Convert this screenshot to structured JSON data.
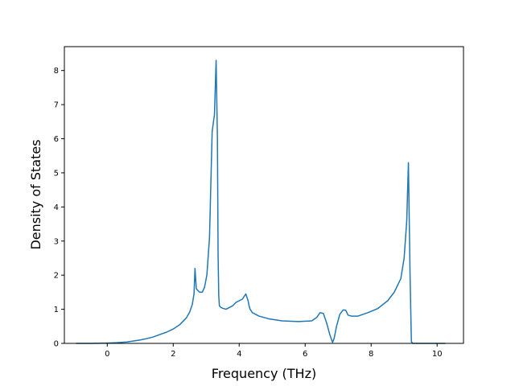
{
  "chart_data": {
    "type": "line",
    "title": "",
    "xlabel": "Frequency (THz)",
    "ylabel": "Density of States",
    "xlim": [
      -1.3,
      10.8
    ],
    "ylim": [
      0,
      8.7
    ],
    "xticks": [
      0,
      2,
      4,
      6,
      8,
      10
    ],
    "yticks": [
      0,
      1,
      2,
      3,
      4,
      5,
      6,
      7,
      8
    ],
    "grid": false,
    "legend": "none",
    "line_color": "#1f77b4",
    "series": [
      {
        "x": [
          -0.95,
          -0.5,
          0.0,
          0.3,
          0.6,
          0.8,
          1.0,
          1.2,
          1.4,
          1.6,
          1.8,
          2.0,
          2.2,
          2.4,
          2.5,
          2.58,
          2.63,
          2.66,
          2.7,
          2.8,
          2.88,
          2.95,
          3.02,
          3.1,
          3.18,
          3.22,
          3.25,
          3.3,
          3.34,
          3.36,
          3.38,
          3.4,
          3.45,
          3.5,
          3.6,
          3.7,
          3.8,
          3.9,
          4.0,
          4.1,
          4.2,
          4.27,
          4.3,
          4.33,
          4.4,
          4.6,
          4.9,
          5.3,
          5.8,
          6.2,
          6.35,
          6.45,
          6.55,
          6.65,
          6.75,
          6.83,
          6.88,
          6.95,
          7.05,
          7.15,
          7.23,
          7.3,
          7.4,
          7.6,
          7.9,
          8.2,
          8.5,
          8.7,
          8.9,
          9.0,
          9.08,
          9.13,
          9.18,
          9.22,
          9.26,
          9.3,
          9.35,
          9.5,
          10.0,
          10.25
        ],
        "y": [
          0,
          0,
          0.01,
          0.02,
          0.04,
          0.07,
          0.1,
          0.14,
          0.19,
          0.26,
          0.33,
          0.42,
          0.55,
          0.75,
          0.92,
          1.15,
          1.45,
          2.2,
          1.6,
          1.5,
          1.5,
          1.65,
          2.0,
          3.1,
          6.2,
          6.5,
          6.7,
          8.3,
          6.0,
          2.6,
          1.4,
          1.1,
          1.05,
          1.03,
          1.0,
          1.05,
          1.1,
          1.2,
          1.25,
          1.3,
          1.45,
          1.25,
          1.1,
          1.0,
          0.9,
          0.8,
          0.72,
          0.66,
          0.64,
          0.66,
          0.76,
          0.9,
          0.88,
          0.6,
          0.25,
          0.03,
          0.15,
          0.5,
          0.85,
          0.98,
          0.97,
          0.83,
          0.8,
          0.8,
          0.9,
          1.02,
          1.25,
          1.5,
          1.9,
          2.5,
          3.6,
          5.3,
          2.0,
          0.05,
          0,
          0,
          0,
          0,
          0,
          0
        ]
      }
    ]
  }
}
